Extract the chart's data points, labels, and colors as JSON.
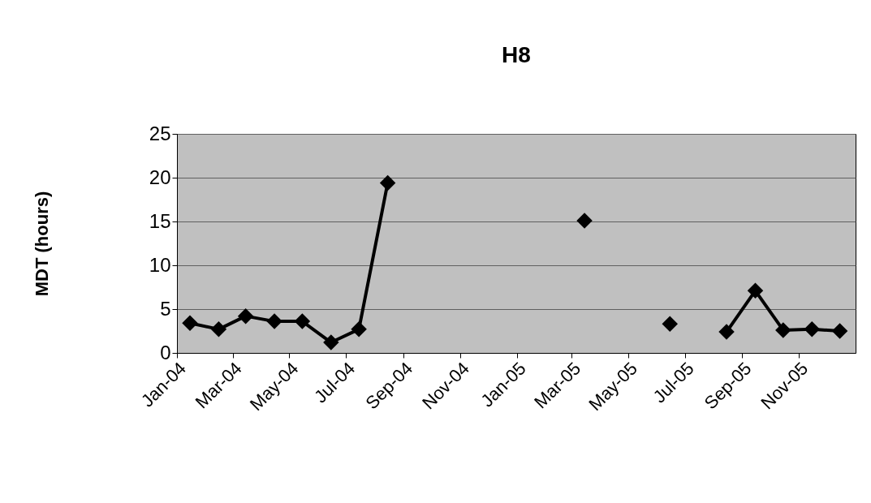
{
  "chart_data": {
    "type": "line",
    "title": "H8",
    "ylabel": "MDT (hours)",
    "x": [
      "2004-01-15",
      "2004-02-15",
      "2004-03-15",
      "2004-04-15",
      "2004-05-15",
      "2004-06-15",
      "2004-07-15",
      "2004-08-15",
      "2004-09-15",
      "2004-10-15",
      "2004-11-15",
      "2004-12-15",
      "2005-01-15",
      "2005-02-15",
      "2005-03-15",
      "2005-04-15",
      "2005-05-15",
      "2005-06-15",
      "2005-07-15",
      "2005-08-15",
      "2005-09-15",
      "2005-10-15",
      "2005-11-15",
      "2005-12-15"
    ],
    "series": [
      {
        "color": "#000000",
        "values": [
          3.4,
          2.7,
          4.2,
          3.6,
          3.6,
          1.2,
          2.7,
          19.4,
          null,
          null,
          null,
          null,
          null,
          null,
          15.1,
          null,
          null,
          3.3,
          null,
          2.4,
          7.1,
          2.6,
          2.7,
          2.5
        ]
      }
    ],
    "xlim": [
      "2004-01-01",
      "2006-01-01"
    ],
    "xticks": [
      {
        "value": "2004-01",
        "label": "Jan-04"
      },
      {
        "value": "2004-03",
        "label": "Mar-04"
      },
      {
        "value": "2004-05",
        "label": "May-04"
      },
      {
        "value": "2004-07",
        "label": "Jul-04"
      },
      {
        "value": "2004-09",
        "label": "Sep-04"
      },
      {
        "value": "2004-11",
        "label": "Nov-04"
      },
      {
        "value": "2005-01",
        "label": "Jan-05"
      },
      {
        "value": "2005-03",
        "label": "Mar-05"
      },
      {
        "value": "2005-05",
        "label": "May-05"
      },
      {
        "value": "2005-07",
        "label": "Jul-05"
      },
      {
        "value": "2005-09",
        "label": "Sep-05"
      },
      {
        "value": "2005-11",
        "label": "Nov-05"
      }
    ],
    "ylim": [
      0,
      25
    ],
    "yticks": [
      0,
      5,
      10,
      15,
      20,
      25
    ],
    "grid": "y",
    "marker": "diamond",
    "line_style": "solid"
  }
}
